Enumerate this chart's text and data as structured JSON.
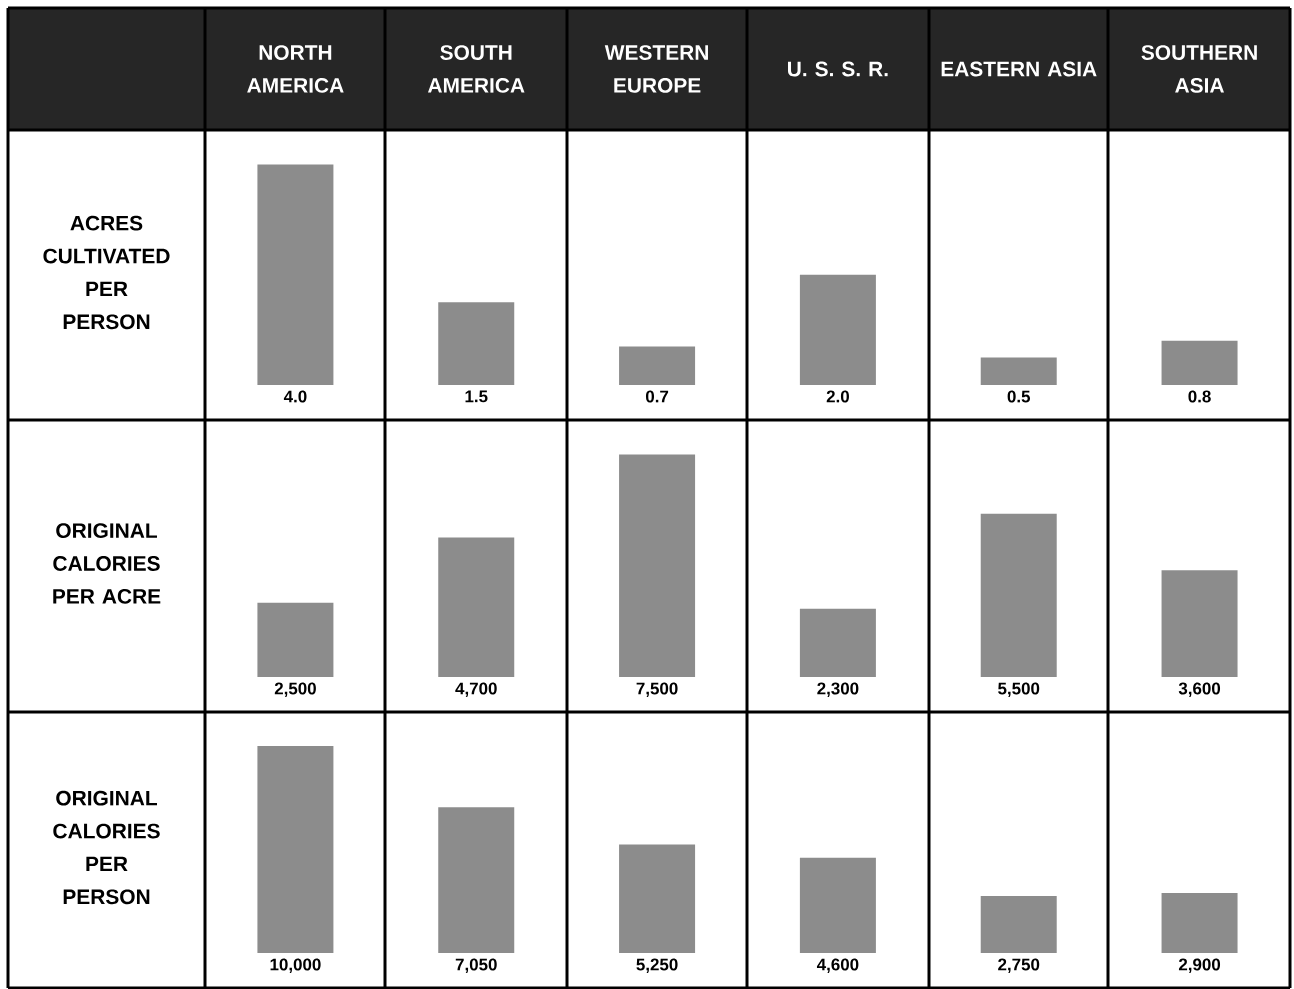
{
  "chart_data": [
    {
      "type": "bar",
      "ylabel": "ACRES CULTIVATED PER PERSON",
      "categories": [
        "NORTH AMERICA",
        "SOUTH AMERICA",
        "WESTERN EUROPE",
        "U. S. S. R.",
        "EASTERN ASIA",
        "SOUTHERN ASIA"
      ],
      "values": [
        4.0,
        1.5,
        0.7,
        2.0,
        0.5,
        0.8
      ],
      "value_labels": [
        "4.0",
        "1.5",
        "0.7",
        "2.0",
        "0.5",
        "0.8"
      ],
      "color": "#8c8c8c",
      "tick_labels": "x"
    },
    {
      "type": "bar",
      "ylabel": "ORIGINAL CALORIES PER ACRE",
      "categories": [
        null,
        null,
        null,
        null,
        null,
        null
      ],
      "values": [
        2500,
        4700,
        7500,
        2300,
        5500,
        3600
      ],
      "value_labels": [
        "2,500",
        "4,700",
        "7,500",
        "2,300",
        "5,500",
        "3,600"
      ],
      "color": "#8c8c8c",
      "tick_labels": false
    },
    {
      "type": "bar",
      "ylabel": "ORIGINAL CALORIES PER PERSON",
      "categories": [
        null,
        null,
        null,
        null,
        null,
        null
      ],
      "values": [
        10000,
        7050,
        5250,
        4600,
        2750,
        2900
      ],
      "value_labels": [
        "10,000",
        "7,050",
        "5,250",
        "4,600",
        "2,750",
        "2,900"
      ],
      "color": "#8c8c8c",
      "tick_labels": false
    }
  ]
}
